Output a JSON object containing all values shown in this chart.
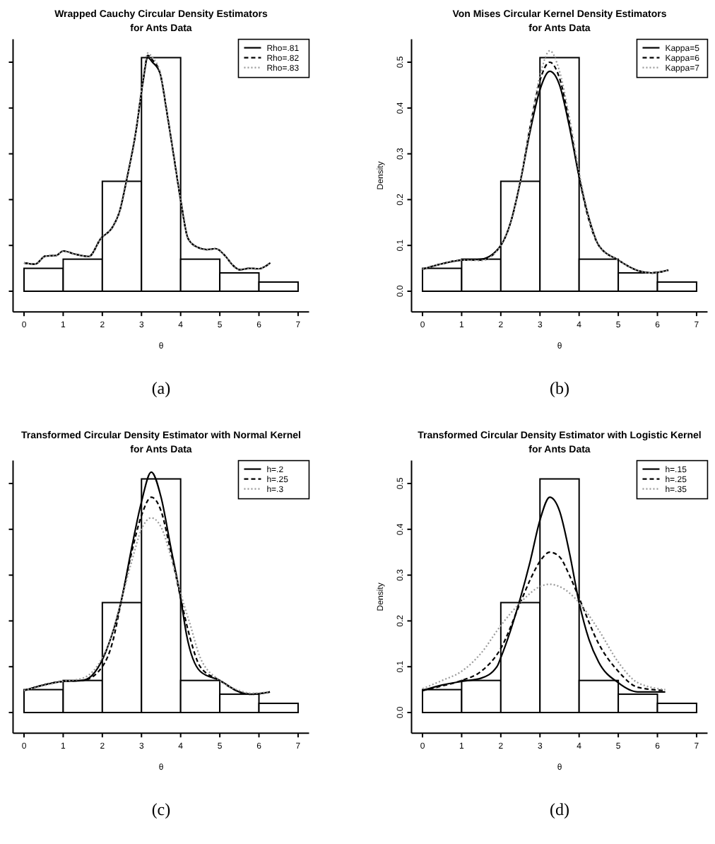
{
  "chart_data": [
    {
      "type": "histogram",
      "title": "Wrapped Cauchy Circular Density Estimators\nfor Ants Data",
      "xlabel": "θ",
      "annotations": [
        "(a)"
      ],
      "bins": [
        0,
        1,
        2,
        3,
        4,
        5,
        6,
        7
      ],
      "values": [
        0.05,
        0.07,
        0.24,
        0.51,
        0.07,
        0.04,
        0.02
      ],
      "color": "#ffffff",
      "xlim": [
        -0.28,
        7.28
      ],
      "ylim": [
        -0.045,
        0.55
      ],
      "xticks": [
        0,
        1,
        2,
        3,
        4,
        5,
        6,
        7
      ],
      "yticks": [
        0,
        0.1,
        0.2,
        0.3,
        0.4,
        0.5
      ],
      "tick_labels": "x",
      "legend": "top right",
      "series": [
        {
          "type": "line",
          "name": "Rho=.81",
          "color": "#000000",
          "line_style": "solid",
          "x": [
            0,
            0.28,
            0.55,
            0.82,
            1.0,
            1.3,
            1.66,
            1.96,
            2.26,
            2.44,
            2.62,
            2.86,
            3.04,
            3.16,
            3.28,
            3.47,
            3.65,
            3.83,
            4.01,
            4.19,
            4.43,
            4.67,
            4.89,
            5.15,
            5.33,
            5.51,
            5.75,
            5.99,
            6.29
          ],
          "values": [
            0.062,
            0.059,
            0.077,
            0.078,
            0.088,
            0.081,
            0.076,
            0.115,
            0.14,
            0.174,
            0.243,
            0.35,
            0.458,
            0.51,
            0.5,
            0.477,
            0.39,
            0.292,
            0.194,
            0.115,
            0.096,
            0.091,
            0.093,
            0.076,
            0.057,
            0.047,
            0.05,
            0.049,
            0.062
          ]
        },
        {
          "type": "line",
          "name": "Rho=.82",
          "color": "#000000",
          "line_style": "dashed",
          "x": [
            0,
            0.28,
            0.55,
            0.82,
            1.0,
            1.3,
            1.66,
            1.96,
            2.26,
            2.44,
            2.62,
            2.86,
            3.04,
            3.16,
            3.28,
            3.47,
            3.65,
            3.83,
            4.01,
            4.19,
            4.43,
            4.67,
            4.89,
            5.15,
            5.33,
            5.51,
            5.75,
            5.99,
            6.29
          ],
          "values": [
            0.062,
            0.059,
            0.077,
            0.078,
            0.088,
            0.081,
            0.076,
            0.115,
            0.14,
            0.174,
            0.243,
            0.35,
            0.46,
            0.515,
            0.505,
            0.477,
            0.39,
            0.292,
            0.194,
            0.115,
            0.096,
            0.091,
            0.093,
            0.076,
            0.057,
            0.047,
            0.05,
            0.049,
            0.062
          ]
        },
        {
          "type": "line",
          "name": "Rho=.83",
          "color": "#999999",
          "line_style": "dotted",
          "x": [
            0,
            0.28,
            0.55,
            0.82,
            1.0,
            1.3,
            1.66,
            1.96,
            2.26,
            2.44,
            2.62,
            2.86,
            3.04,
            3.16,
            3.28,
            3.47,
            3.65,
            3.83,
            4.01,
            4.19,
            4.43,
            4.67,
            4.89,
            5.15,
            5.33,
            5.51,
            5.75,
            5.99,
            6.29
          ],
          "values": [
            0.062,
            0.059,
            0.077,
            0.078,
            0.088,
            0.081,
            0.076,
            0.115,
            0.14,
            0.174,
            0.243,
            0.35,
            0.462,
            0.52,
            0.51,
            0.48,
            0.39,
            0.292,
            0.194,
            0.115,
            0.096,
            0.091,
            0.093,
            0.076,
            0.057,
            0.047,
            0.05,
            0.049,
            0.062
          ]
        }
      ]
    },
    {
      "type": "histogram",
      "title": "Von Mises Circular Kernel Density Estimators\nfor Ants Data",
      "xlabel": "θ",
      "ylabel": "Density",
      "annotations": [
        "(b)"
      ],
      "bins": [
        0,
        1,
        2,
        3,
        4,
        5,
        6,
        7
      ],
      "values": [
        0.05,
        0.07,
        0.24,
        0.51,
        0.07,
        0.04,
        0.02
      ],
      "color": "#ffffff",
      "xlim": [
        -0.28,
        7.28
      ],
      "ylim": [
        -0.045,
        0.55
      ],
      "xticks": [
        0,
        1,
        2,
        3,
        4,
        5,
        6,
        7
      ],
      "yticks": [
        {
          "value": 0,
          "label": "0.0"
        },
        0.1,
        0.2,
        0.3,
        0.4,
        0.5
      ],
      "legend": "top right",
      "series": [
        {
          "type": "line",
          "name": "Kappa=5",
          "color": "#000000",
          "line_style": "solid",
          "x": [
            0,
            0.5,
            1,
            1.5,
            2,
            2.25,
            2.5,
            2.75,
            3,
            3.25,
            3.5,
            3.75,
            4,
            4.25,
            4.5,
            5,
            5.5,
            5.85,
            6.28
          ],
          "values": [
            0.048,
            0.06,
            0.068,
            0.07,
            0.1,
            0.15,
            0.24,
            0.35,
            0.44,
            0.48,
            0.45,
            0.36,
            0.25,
            0.16,
            0.1,
            0.068,
            0.045,
            0.04,
            0.046
          ]
        },
        {
          "type": "line",
          "name": "Kappa=6",
          "color": "#000000",
          "line_style": "dashed",
          "x": [
            0,
            0.5,
            1,
            1.5,
            2,
            2.25,
            2.5,
            2.75,
            3,
            3.25,
            3.5,
            3.75,
            4,
            4.25,
            4.5,
            5,
            5.5,
            5.85,
            6.28
          ],
          "values": [
            0.048,
            0.06,
            0.068,
            0.068,
            0.1,
            0.15,
            0.24,
            0.36,
            0.46,
            0.5,
            0.465,
            0.37,
            0.25,
            0.155,
            0.1,
            0.068,
            0.045,
            0.04,
            0.046
          ]
        },
        {
          "type": "line",
          "name": "Kappa=7",
          "color": "#999999",
          "line_style": "dotted",
          "x": [
            0,
            0.5,
            1,
            1.5,
            2,
            2.25,
            2.5,
            2.75,
            3,
            3.25,
            3.5,
            3.75,
            4,
            4.25,
            4.5,
            5,
            5.5,
            5.85,
            6.28
          ],
          "values": [
            0.048,
            0.06,
            0.068,
            0.067,
            0.1,
            0.15,
            0.24,
            0.36,
            0.47,
            0.525,
            0.48,
            0.38,
            0.26,
            0.16,
            0.1,
            0.068,
            0.045,
            0.04,
            0.046
          ]
        }
      ]
    },
    {
      "type": "histogram",
      "title": "Transformed Circular Density Estimator with Normal Kernel\nfor Ants Data",
      "xlabel": "θ",
      "annotations": [
        "(c)"
      ],
      "bins": [
        0,
        1,
        2,
        3,
        4,
        5,
        6,
        7
      ],
      "values": [
        0.05,
        0.07,
        0.24,
        0.51,
        0.07,
        0.04,
        0.02
      ],
      "color": "#ffffff",
      "xlim": [
        -0.28,
        7.28
      ],
      "ylim": [
        -0.045,
        0.55
      ],
      "xticks": [
        0,
        1,
        2,
        3,
        4,
        5,
        6,
        7
      ],
      "yticks": [
        0,
        0.1,
        0.2,
        0.3,
        0.4,
        0.5
      ],
      "tick_labels": "x",
      "legend": "top right",
      "series": [
        {
          "type": "line",
          "name": "h=.2",
          "color": "#000000",
          "line_style": "solid",
          "x": [
            0,
            0.5,
            1,
            1.5,
            2.1,
            2.5,
            2.75,
            3,
            3.25,
            3.5,
            3.75,
            4,
            4.15,
            4.5,
            5,
            5.5,
            5.8,
            6.28
          ],
          "values": [
            0.048,
            0.06,
            0.068,
            0.07,
            0.135,
            0.25,
            0.36,
            0.46,
            0.525,
            0.47,
            0.36,
            0.25,
            0.17,
            0.09,
            0.07,
            0.045,
            0.04,
            0.045
          ]
        },
        {
          "type": "line",
          "name": "h=.25",
          "color": "#000000",
          "line_style": "dashed",
          "x": [
            0,
            1,
            1.5,
            2,
            2.25,
            2.5,
            2.75,
            3,
            3.25,
            3.5,
            3.75,
            4,
            4.25,
            4.5,
            5,
            5.5,
            5.8,
            6.28
          ],
          "values": [
            0.048,
            0.068,
            0.07,
            0.1,
            0.15,
            0.25,
            0.35,
            0.43,
            0.47,
            0.44,
            0.35,
            0.25,
            0.16,
            0.1,
            0.07,
            0.045,
            0.04,
            0.045
          ]
        },
        {
          "type": "line",
          "name": "h=.3",
          "color": "#999999",
          "line_style": "dotted",
          "x": [
            0,
            1,
            1.5,
            2,
            2.25,
            2.5,
            2.75,
            3,
            3.25,
            3.5,
            3.75,
            4,
            4.25,
            4.5,
            5,
            5.5,
            5.8,
            6.28
          ],
          "values": [
            0.048,
            0.068,
            0.075,
            0.12,
            0.17,
            0.25,
            0.33,
            0.4,
            0.425,
            0.405,
            0.34,
            0.26,
            0.19,
            0.12,
            0.07,
            0.048,
            0.042,
            0.045
          ]
        }
      ]
    },
    {
      "type": "histogram",
      "title": "Transformed Circular Density Estimator with Logistic Kernel\nfor Ants Data",
      "xlabel": "θ",
      "ylabel": "Density",
      "annotations": [
        "(d)"
      ],
      "bins": [
        0,
        1,
        2,
        3,
        4,
        5,
        6,
        7
      ],
      "values": [
        0.05,
        0.07,
        0.24,
        0.51,
        0.07,
        0.04,
        0.02
      ],
      "color": "#ffffff",
      "xlim": [
        -0.28,
        7.28
      ],
      "ylim": [
        -0.045,
        0.55
      ],
      "xticks": [
        0,
        1,
        2,
        3,
        4,
        5,
        6,
        7
      ],
      "yticks": [
        {
          "value": 0,
          "label": "0.0"
        },
        0.1,
        0.2,
        0.3,
        0.4,
        0.5
      ],
      "legend": "top right",
      "series": [
        {
          "type": "line",
          "name": "h=.15",
          "color": "#000000",
          "line_style": "solid",
          "x": [
            0,
            0.5,
            1,
            1.5,
            1.9,
            2,
            2.5,
            2.75,
            3,
            3.25,
            3.5,
            3.75,
            4,
            4.25,
            4.5,
            5,
            5.5,
            6.2
          ],
          "values": [
            0.048,
            0.06,
            0.068,
            0.075,
            0.1,
            0.12,
            0.25,
            0.33,
            0.42,
            0.47,
            0.44,
            0.35,
            0.24,
            0.16,
            0.11,
            0.065,
            0.045,
            0.045
          ]
        },
        {
          "type": "line",
          "name": "h=.25",
          "color": "#000000",
          "line_style": "dashed",
          "x": [
            0,
            0.5,
            1,
            1.5,
            2,
            2.5,
            2.75,
            3,
            3.25,
            3.5,
            3.75,
            4,
            4.5,
            5,
            5.5,
            6.2
          ],
          "values": [
            0.048,
            0.058,
            0.07,
            0.09,
            0.14,
            0.24,
            0.29,
            0.33,
            0.35,
            0.34,
            0.3,
            0.25,
            0.15,
            0.09,
            0.055,
            0.048
          ]
        },
        {
          "type": "line",
          "name": "h=.35",
          "color": "#999999",
          "line_style": "dotted",
          "x": [
            0,
            0.5,
            1,
            1.5,
            2,
            2.5,
            3,
            3.25,
            3.5,
            4,
            4.5,
            5,
            5.5,
            6.2
          ],
          "values": [
            0.052,
            0.07,
            0.09,
            0.13,
            0.19,
            0.24,
            0.275,
            0.28,
            0.275,
            0.24,
            0.18,
            0.11,
            0.065,
            0.05
          ]
        }
      ]
    }
  ]
}
